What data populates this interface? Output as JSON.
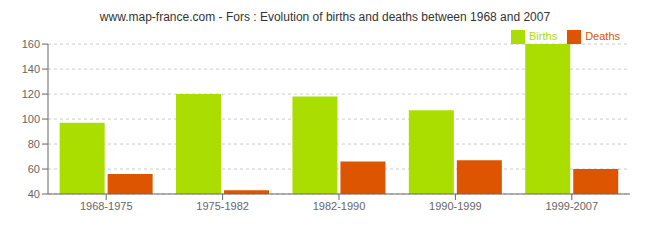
{
  "chart_data": {
    "type": "bar",
    "title": "www.map-france.com - Fors : Evolution of births and deaths between 1968 and 2007",
    "categories": [
      "1968-1975",
      "1975-1982",
      "1982-1990",
      "1990-1999",
      "1999-2007"
    ],
    "series": [
      {
        "name": "Births",
        "color": "#aadd00",
        "values": [
          97,
          120,
          118,
          107,
          160
        ]
      },
      {
        "name": "Deaths",
        "color": "#dd5500",
        "values": [
          56,
          43,
          66,
          67,
          60
        ]
      }
    ],
    "ylim": [
      40,
      160
    ],
    "yticks": [
      40,
      60,
      80,
      100,
      120,
      140,
      160
    ],
    "grid": true,
    "legend": "upper right"
  }
}
